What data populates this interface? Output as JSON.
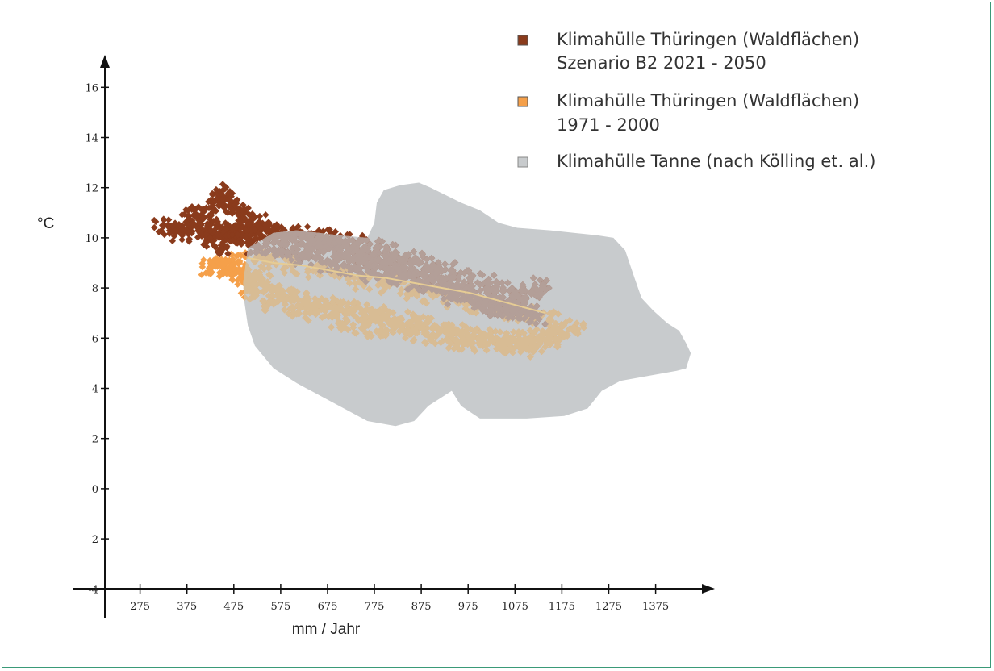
{
  "chart_data": {
    "type": "scatter",
    "title": "",
    "xlabel": "mm / Jahr",
    "ylabel": "°C",
    "xlim": [
      200,
      1460
    ],
    "ylim": [
      -4.6,
      17.2
    ],
    "x_ticks": [
      275,
      375,
      475,
      575,
      675,
      775,
      875,
      975,
      1075,
      1175,
      1275,
      1375
    ],
    "y_ticks": [
      -4,
      -2,
      0,
      2,
      4,
      6,
      8,
      10,
      12,
      14,
      16
    ],
    "grid": false,
    "legend_position": "top-right",
    "colors": {
      "scenario": "#8a3b1c",
      "historic": "#f5a04a",
      "tanne": "#c8cbcd",
      "overlap_scenario": "#b39f98",
      "overlap_historic": "#d8bc94",
      "trend": "#e6cc94",
      "axis": "#111111",
      "frame": "#3a9a78"
    },
    "legend": [
      {
        "name": "Klimahülle Thüringen (Waldflächen)",
        "name2": "Szenario B2 2021 - 2050",
        "key": "scenario"
      },
      {
        "name": "Klimahülle Thüringen (Waldflächen)",
        "name2": "1971 - 2000",
        "key": "historic"
      },
      {
        "name": "Klimahülle Tanne (nach Kölling et. al.)",
        "name2": "",
        "key": "tanne"
      }
    ],
    "series": [
      {
        "key": "tanne",
        "kind": "area",
        "points": [
          [
            495,
            8.2
          ],
          [
            505,
            9.6
          ],
          [
            560,
            10.2
          ],
          [
            610,
            10.3
          ],
          [
            700,
            10.1
          ],
          [
            760,
            10.0
          ],
          [
            775,
            10.6
          ],
          [
            780,
            11.4
          ],
          [
            795,
            11.9
          ],
          [
            830,
            12.1
          ],
          [
            870,
            12.2
          ],
          [
            895,
            12.0
          ],
          [
            960,
            11.4
          ],
          [
            1000,
            11.1
          ],
          [
            1040,
            10.6
          ],
          [
            1080,
            10.4
          ],
          [
            1150,
            10.3
          ],
          [
            1200,
            10.2
          ],
          [
            1250,
            10.1
          ],
          [
            1285,
            10.0
          ],
          [
            1310,
            9.5
          ],
          [
            1330,
            8.4
          ],
          [
            1345,
            7.6
          ],
          [
            1370,
            7.1
          ],
          [
            1400,
            6.6
          ],
          [
            1425,
            6.3
          ],
          [
            1440,
            5.8
          ],
          [
            1450,
            5.4
          ],
          [
            1440,
            4.8
          ],
          [
            1420,
            4.7
          ],
          [
            1360,
            4.5
          ],
          [
            1300,
            4.3
          ],
          [
            1260,
            3.9
          ],
          [
            1230,
            3.2
          ],
          [
            1180,
            2.9
          ],
          [
            1100,
            2.8
          ],
          [
            1000,
            2.8
          ],
          [
            960,
            3.3
          ],
          [
            940,
            3.9
          ],
          [
            890,
            3.3
          ],
          [
            860,
            2.7
          ],
          [
            820,
            2.5
          ],
          [
            760,
            2.7
          ],
          [
            680,
            3.5
          ],
          [
            610,
            4.2
          ],
          [
            560,
            4.8
          ],
          [
            520,
            5.7
          ],
          [
            505,
            6.5
          ],
          [
            498,
            7.4
          ]
        ]
      },
      {
        "key": "scenario",
        "kind": "points",
        "points": [
          [
            325,
            10.5
          ],
          [
            345,
            10.3
          ],
          [
            365,
            10.2
          ],
          [
            385,
            10.6
          ],
          [
            400,
            10.4
          ],
          [
            420,
            10.2
          ],
          [
            430,
            11.4
          ],
          [
            445,
            11.8
          ],
          [
            460,
            11.6
          ],
          [
            470,
            11.3
          ],
          [
            485,
            11.0
          ],
          [
            495,
            10.8
          ],
          [
            510,
            10.6
          ],
          [
            530,
            10.6
          ],
          [
            545,
            10.3
          ],
          [
            560,
            10.2
          ],
          [
            580,
            10.1
          ],
          [
            600,
            10.0
          ],
          [
            620,
            10.0
          ],
          [
            640,
            9.9
          ],
          [
            660,
            9.8
          ],
          [
            680,
            9.7
          ],
          [
            700,
            9.6
          ],
          [
            720,
            9.4
          ],
          [
            740,
            9.3
          ],
          [
            760,
            9.2
          ],
          [
            780,
            9.1
          ],
          [
            800,
            9.0
          ],
          [
            820,
            8.9
          ],
          [
            840,
            8.8
          ],
          [
            860,
            8.7
          ],
          [
            880,
            8.6
          ],
          [
            900,
            8.5
          ],
          [
            920,
            8.3
          ],
          [
            940,
            8.1
          ],
          [
            960,
            7.9
          ],
          [
            980,
            7.8
          ],
          [
            1000,
            7.6
          ],
          [
            1020,
            7.5
          ],
          [
            1040,
            7.3
          ],
          [
            1060,
            7.2
          ],
          [
            1080,
            7.1
          ],
          [
            1100,
            7.0
          ],
          [
            1120,
            6.9
          ],
          [
            1135,
            8.1
          ],
          [
            1110,
            7.8
          ],
          [
            1080,
            7.7
          ],
          [
            1050,
            7.9
          ],
          [
            1020,
            8.2
          ],
          [
            980,
            8.4
          ],
          [
            940,
            8.7
          ],
          [
            900,
            8.9
          ],
          [
            860,
            9.1
          ],
          [
            820,
            9.4
          ],
          [
            780,
            9.6
          ],
          [
            740,
            9.8
          ],
          [
            700,
            9.9
          ],
          [
            660,
            10.0
          ],
          [
            620,
            10.1
          ],
          [
            580,
            10.2
          ],
          [
            540,
            10.4
          ],
          [
            500,
            10.2
          ],
          [
            470,
            10.0
          ],
          [
            450,
            9.7
          ],
          [
            430,
            9.9
          ],
          [
            410,
            10.8
          ],
          [
            395,
            10.9
          ],
          [
            440,
            10.5
          ],
          [
            460,
            10.4
          ],
          [
            480,
            10.3
          ],
          [
            505,
            10.0
          ],
          [
            525,
            9.7
          ],
          [
            560,
            9.5
          ],
          [
            590,
            9.4
          ],
          [
            620,
            9.3
          ],
          [
            650,
            9.2
          ],
          [
            680,
            9.0
          ],
          [
            710,
            8.9
          ],
          [
            740,
            8.8
          ],
          [
            770,
            8.6
          ],
          [
            800,
            8.5
          ],
          [
            830,
            8.4
          ],
          [
            860,
            8.2
          ],
          [
            890,
            8.1
          ],
          [
            920,
            7.9
          ],
          [
            950,
            7.7
          ],
          [
            980,
            7.5
          ],
          [
            1010,
            7.4
          ],
          [
            1040,
            7.2
          ],
          [
            1070,
            7.1
          ]
        ]
      },
      {
        "key": "historic",
        "kind": "points",
        "points": [
          [
            425,
            8.8
          ],
          [
            440,
            8.9
          ],
          [
            455,
            8.8
          ],
          [
            470,
            8.9
          ],
          [
            485,
            9.0
          ],
          [
            490,
            8.6
          ],
          [
            500,
            8.5
          ],
          [
            515,
            8.4
          ],
          [
            535,
            8.2
          ],
          [
            555,
            8.0
          ],
          [
            575,
            7.8
          ],
          [
            600,
            7.6
          ],
          [
            625,
            7.5
          ],
          [
            650,
            7.4
          ],
          [
            675,
            7.3
          ],
          [
            700,
            7.2
          ],
          [
            725,
            7.1
          ],
          [
            750,
            7.0
          ],
          [
            775,
            6.9
          ],
          [
            800,
            6.8
          ],
          [
            825,
            6.7
          ],
          [
            850,
            6.6
          ],
          [
            875,
            6.5
          ],
          [
            900,
            6.4
          ],
          [
            925,
            6.3
          ],
          [
            950,
            6.2
          ],
          [
            975,
            6.1
          ],
          [
            1000,
            6.0
          ],
          [
            1025,
            6.0
          ],
          [
            1050,
            5.9
          ],
          [
            1075,
            5.9
          ],
          [
            1100,
            5.9
          ],
          [
            1125,
            6.0
          ],
          [
            1150,
            6.1
          ],
          [
            1175,
            6.2
          ],
          [
            1200,
            6.4
          ],
          [
            1150,
            6.7
          ],
          [
            1100,
            6.9
          ],
          [
            1050,
            7.1
          ],
          [
            1000,
            7.3
          ],
          [
            950,
            7.5
          ],
          [
            900,
            7.7
          ],
          [
            850,
            7.9
          ],
          [
            800,
            8.1
          ],
          [
            750,
            8.3
          ],
          [
            700,
            8.5
          ],
          [
            650,
            8.7
          ],
          [
            600,
            8.9
          ],
          [
            550,
            9.0
          ],
          [
            520,
            9.1
          ],
          [
            700,
            6.6
          ],
          [
            750,
            6.4
          ],
          [
            800,
            6.3
          ],
          [
            850,
            6.2
          ],
          [
            900,
            6.1
          ],
          [
            950,
            5.9
          ],
          [
            1000,
            5.8
          ],
          [
            1050,
            5.7
          ],
          [
            1100,
            5.6
          ],
          [
            1150,
            5.8
          ],
          [
            600,
            7.2
          ],
          [
            650,
            7.0
          ],
          [
            560,
            7.4
          ],
          [
            520,
            7.7
          ],
          [
            505,
            8.0
          ]
        ]
      },
      {
        "key": "trend",
        "kind": "line",
        "points": [
          [
            505,
            9.2
          ],
          [
            560,
            9.0
          ],
          [
            620,
            8.9
          ],
          [
            680,
            8.7
          ],
          [
            740,
            8.5
          ],
          [
            800,
            8.4
          ],
          [
            860,
            8.2
          ],
          [
            920,
            8.0
          ],
          [
            980,
            7.8
          ],
          [
            1040,
            7.5
          ],
          [
            1100,
            7.2
          ],
          [
            1140,
            7.0
          ]
        ]
      }
    ]
  }
}
